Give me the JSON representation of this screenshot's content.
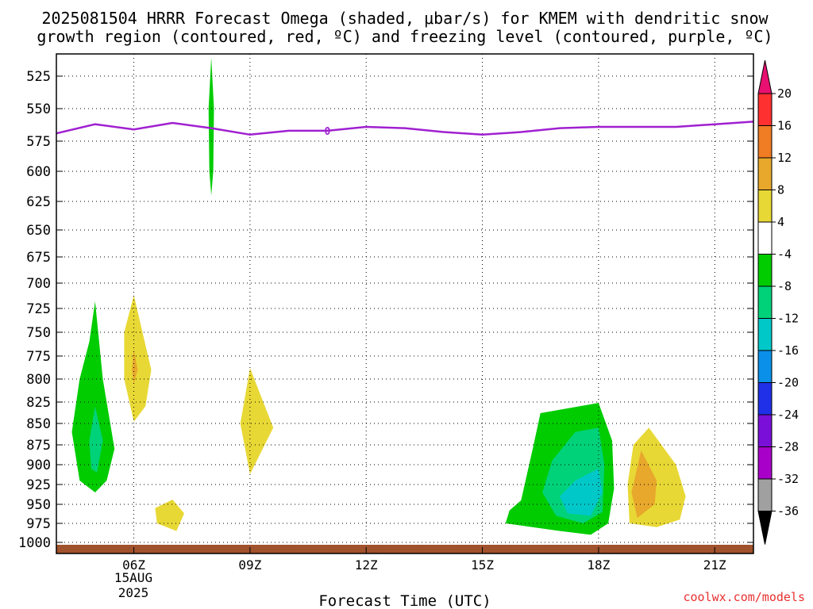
{
  "chart_data": {
    "type": "heatmap",
    "title_line1": "2025081504 HRRR Forecast Omega (shaded, μbar/s) for KMEM with dendritic snow",
    "title_line2": "growth region (contoured, red, ºC) and freezing level (contoured, purple, ºC)",
    "xlabel": "Forecast Time (UTC)",
    "ylabel": "",
    "x_ticks": [
      "06Z",
      "09Z",
      "12Z",
      "15Z",
      "18Z",
      "21Z"
    ],
    "x_tick_hours": [
      6,
      9,
      12,
      15,
      18,
      21
    ],
    "x_range_hours": [
      4,
      22
    ],
    "date_label": [
      "15AUG",
      "2025"
    ],
    "y_ticks": [
      525,
      550,
      575,
      600,
      625,
      650,
      675,
      700,
      725,
      750,
      775,
      800,
      825,
      850,
      875,
      900,
      925,
      950,
      975,
      1000
    ],
    "y_range_hPa": [
      505,
      1010
    ],
    "y_scale": "pressure (inverted, log-like)",
    "grid": true,
    "colorbar": {
      "labels": [
        "20",
        "16",
        "12",
        "8",
        "4",
        "-4",
        "-8",
        "-12",
        "-16",
        "-20",
        "-24",
        "-28",
        "-32",
        "-36"
      ],
      "bins": [
        {
          "color": "#ff3030"
        },
        {
          "color": "#f07c23"
        },
        {
          "color": "#e8a82c"
        },
        {
          "color": "#e8d835"
        },
        {
          "color": "#ffffff"
        },
        {
          "color": "#00cc00"
        },
        {
          "color": "#00d27a"
        },
        {
          "color": "#00c8c8"
        },
        {
          "color": "#0a90e8"
        },
        {
          "color": "#2030e8"
        },
        {
          "color": "#7a10d8"
        },
        {
          "color": "#a800c8"
        },
        {
          "color": "#a0a0a0"
        }
      ],
      "top_color": "#e81070",
      "bottom_color": "#000000"
    },
    "freezing_level": {
      "color": "#a020d0",
      "label": "0",
      "label_at_hour": 11,
      "points": [
        [
          4,
          569
        ],
        [
          5,
          562
        ],
        [
          6,
          566
        ],
        [
          7,
          561
        ],
        [
          8,
          565
        ],
        [
          9,
          570
        ],
        [
          10,
          567
        ],
        [
          11,
          567
        ],
        [
          12,
          564
        ],
        [
          13,
          565
        ],
        [
          14,
          568
        ],
        [
          15,
          570
        ],
        [
          16,
          568
        ],
        [
          17,
          565
        ],
        [
          18,
          564
        ],
        [
          19,
          564
        ],
        [
          20,
          564
        ],
        [
          21,
          562
        ],
        [
          22,
          560
        ]
      ]
    },
    "surface_color": "#a0522d",
    "omega_regions": [
      {
        "value": "-4 to -8",
        "color": "#00cc00",
        "points": [
          [
            8.0,
            508
          ],
          [
            8.07,
            550
          ],
          [
            8.05,
            600
          ],
          [
            8.0,
            620
          ],
          [
            7.95,
            600
          ],
          [
            7.93,
            550
          ],
          [
            8.0,
            508
          ]
        ]
      },
      {
        "value": "-4 to -8",
        "color": "#00cc00",
        "points": [
          [
            5.0,
            718
          ],
          [
            5.2,
            800
          ],
          [
            5.5,
            880
          ],
          [
            5.3,
            920
          ],
          [
            5.0,
            935
          ],
          [
            4.6,
            920
          ],
          [
            4.4,
            860
          ],
          [
            4.6,
            800
          ],
          [
            4.85,
            760
          ],
          [
            5.0,
            718
          ]
        ]
      },
      {
        "value": "-8 to -12",
        "color": "#00d27a",
        "points": [
          [
            5.0,
            830
          ],
          [
            5.2,
            870
          ],
          [
            5.05,
            910
          ],
          [
            4.9,
            905
          ],
          [
            4.85,
            870
          ],
          [
            5.0,
            830
          ]
        ]
      },
      {
        "value": "4 to 8",
        "color": "#e8d835",
        "points": [
          [
            6.0,
            712
          ],
          [
            6.45,
            790
          ],
          [
            6.3,
            830
          ],
          [
            6.0,
            848
          ],
          [
            5.75,
            800
          ],
          [
            5.75,
            750
          ],
          [
            6.0,
            712
          ]
        ]
      },
      {
        "value": "8 to 12",
        "color": "#e8a82c",
        "points": [
          [
            6.0,
            768
          ],
          [
            6.1,
            790
          ],
          [
            6.0,
            805
          ],
          [
            5.95,
            790
          ],
          [
            6.0,
            768
          ]
        ]
      },
      {
        "value": "4 to 8",
        "color": "#e8d835",
        "points": [
          [
            9.0,
            788
          ],
          [
            9.6,
            855
          ],
          [
            9.0,
            912
          ],
          [
            8.75,
            850
          ],
          [
            9.0,
            788
          ]
        ]
      },
      {
        "value": "4 to 8",
        "color": "#e8d835",
        "points": [
          [
            7.0,
            944
          ],
          [
            7.3,
            962
          ],
          [
            7.1,
            985
          ],
          [
            6.6,
            975
          ],
          [
            6.55,
            955
          ],
          [
            7.0,
            944
          ]
        ]
      },
      {
        "value": "-4 to -8",
        "color": "#00cc00",
        "points": [
          [
            16.5,
            838
          ],
          [
            18.0,
            826
          ],
          [
            18.35,
            870
          ],
          [
            18.4,
            930
          ],
          [
            18.25,
            975
          ],
          [
            17.8,
            990
          ],
          [
            17.0,
            985
          ],
          [
            15.6,
            975
          ],
          [
            15.7,
            958
          ],
          [
            16.0,
            945
          ],
          [
            16.3,
            880
          ],
          [
            16.5,
            838
          ]
        ]
      },
      {
        "value": "-8 to -12",
        "color": "#00d27a",
        "points": [
          [
            17.4,
            860
          ],
          [
            18.0,
            855
          ],
          [
            18.15,
            900
          ],
          [
            18.1,
            960
          ],
          [
            17.6,
            975
          ],
          [
            16.9,
            965
          ],
          [
            16.55,
            935
          ],
          [
            16.8,
            895
          ],
          [
            17.4,
            860
          ]
        ]
      },
      {
        "value": "-12 to -16",
        "color": "#00c8c8",
        "points": [
          [
            18.0,
            905
          ],
          [
            18.1,
            935
          ],
          [
            17.8,
            965
          ],
          [
            17.2,
            962
          ],
          [
            17.0,
            940
          ],
          [
            17.4,
            920
          ],
          [
            18.0,
            905
          ]
        ]
      },
      {
        "value": "4 to 8",
        "color": "#e8d835",
        "points": [
          [
            19.3,
            855
          ],
          [
            20.0,
            900
          ],
          [
            20.25,
            940
          ],
          [
            20.1,
            970
          ],
          [
            19.5,
            980
          ],
          [
            18.8,
            975
          ],
          [
            18.75,
            925
          ],
          [
            18.9,
            875
          ],
          [
            19.3,
            855
          ]
        ]
      },
      {
        "value": "8 to 12",
        "color": "#e8a82c",
        "points": [
          [
            19.1,
            882
          ],
          [
            19.5,
            920
          ],
          [
            19.45,
            950
          ],
          [
            19.0,
            968
          ],
          [
            18.85,
            935
          ],
          [
            19.1,
            882
          ]
        ]
      }
    ]
  },
  "footer": {
    "credit": "coolwx.com/models"
  }
}
